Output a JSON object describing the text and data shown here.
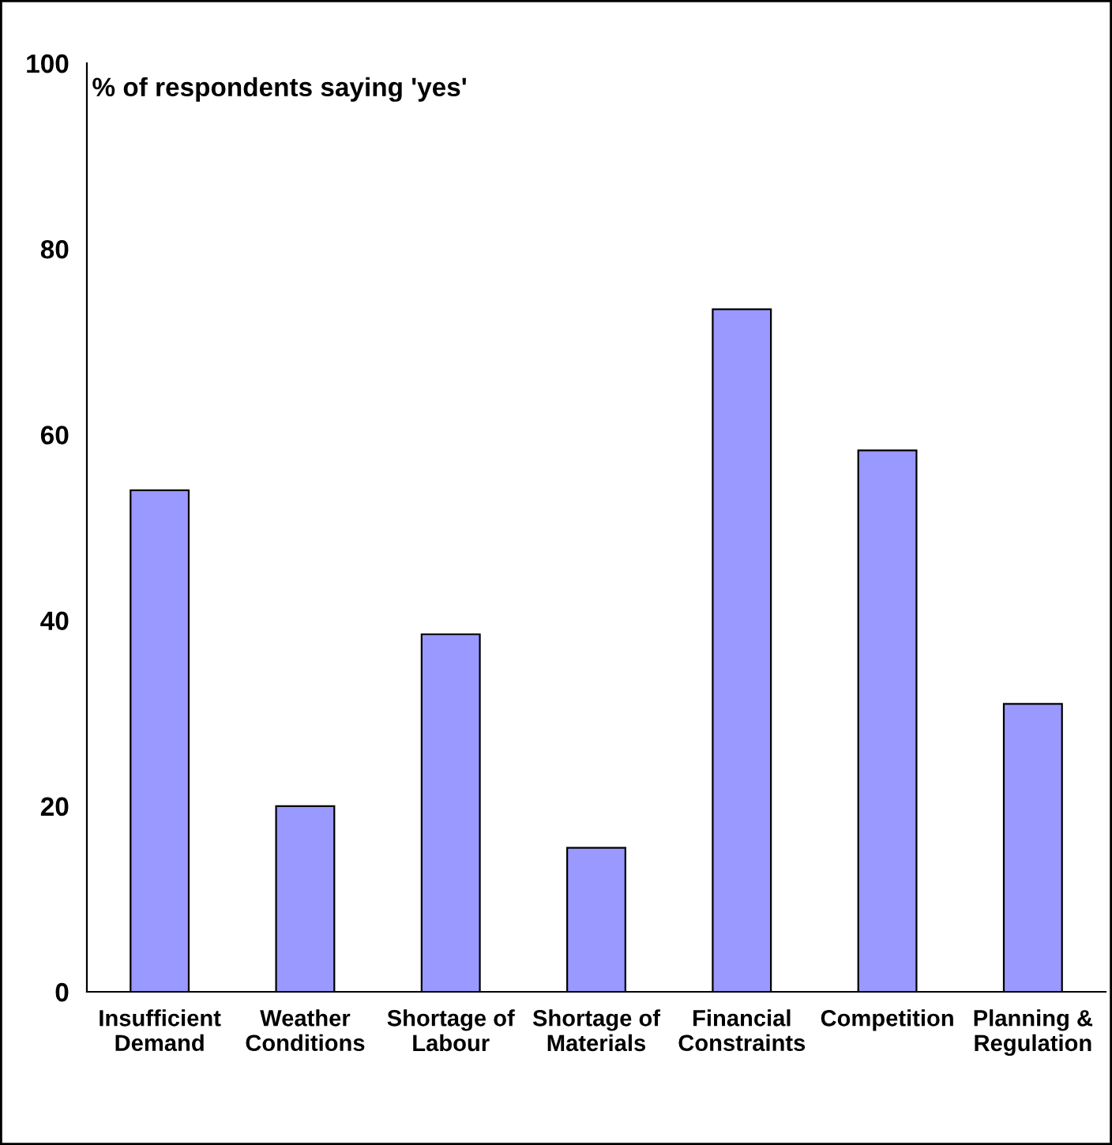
{
  "chart_data": {
    "type": "bar",
    "ylabel": "% of respondents saying 'yes'",
    "categories": [
      "Insufficient\nDemand",
      "Weather\nConditions",
      "Shortage of\nLabour",
      "Shortage of\nMaterials",
      "Financial\nConstraints",
      "Competition",
      "Planning &\nRegulation"
    ],
    "values": [
      54,
      20,
      38.5,
      15.5,
      73.5,
      58.3,
      31
    ],
    "color": "#9999ff",
    "ylim": [
      0,
      100
    ],
    "yticks": [
      0,
      20,
      40,
      60,
      80,
      100
    ],
    "grid": false,
    "legend": false
  }
}
